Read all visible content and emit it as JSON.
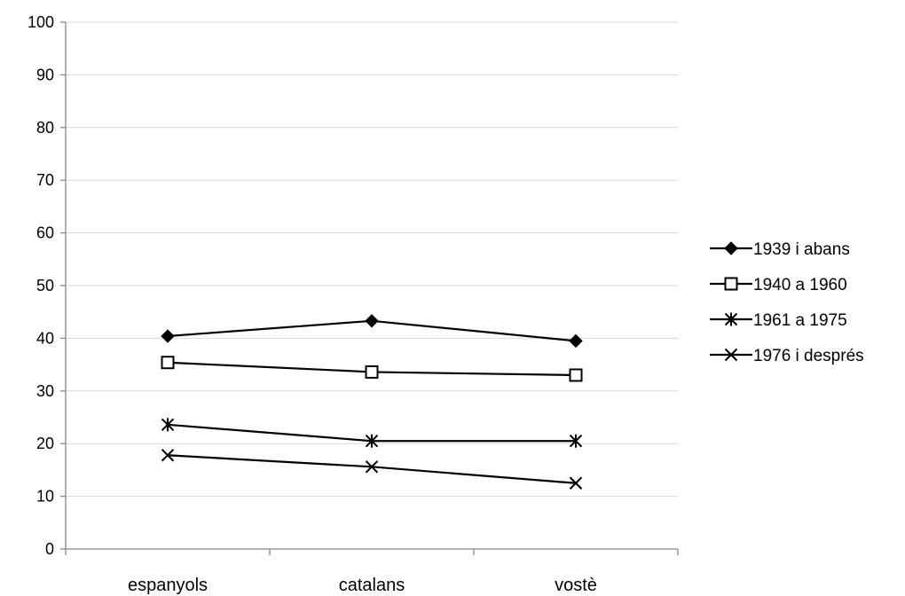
{
  "chart_data": {
    "type": "line",
    "categories": [
      "espanyols",
      "catalans",
      "vostè"
    ],
    "ylim": [
      0,
      100
    ],
    "yticks": [
      0,
      10,
      20,
      30,
      40,
      50,
      60,
      70,
      80,
      90,
      100
    ],
    "grid": true,
    "legend_position": "right",
    "series": [
      {
        "name": "1939 i abans",
        "marker": "diamond-filled",
        "values": [
          40.4,
          43.3,
          39.5
        ]
      },
      {
        "name": "1940 a 1960",
        "marker": "square-open",
        "values": [
          35.4,
          33.6,
          33.0
        ]
      },
      {
        "name": "1961 a 1975",
        "marker": "star",
        "values": [
          23.6,
          20.5,
          20.5
        ]
      },
      {
        "name": "1976 i després",
        "marker": "x",
        "values": [
          17.8,
          15.6,
          12.5
        ]
      }
    ]
  }
}
